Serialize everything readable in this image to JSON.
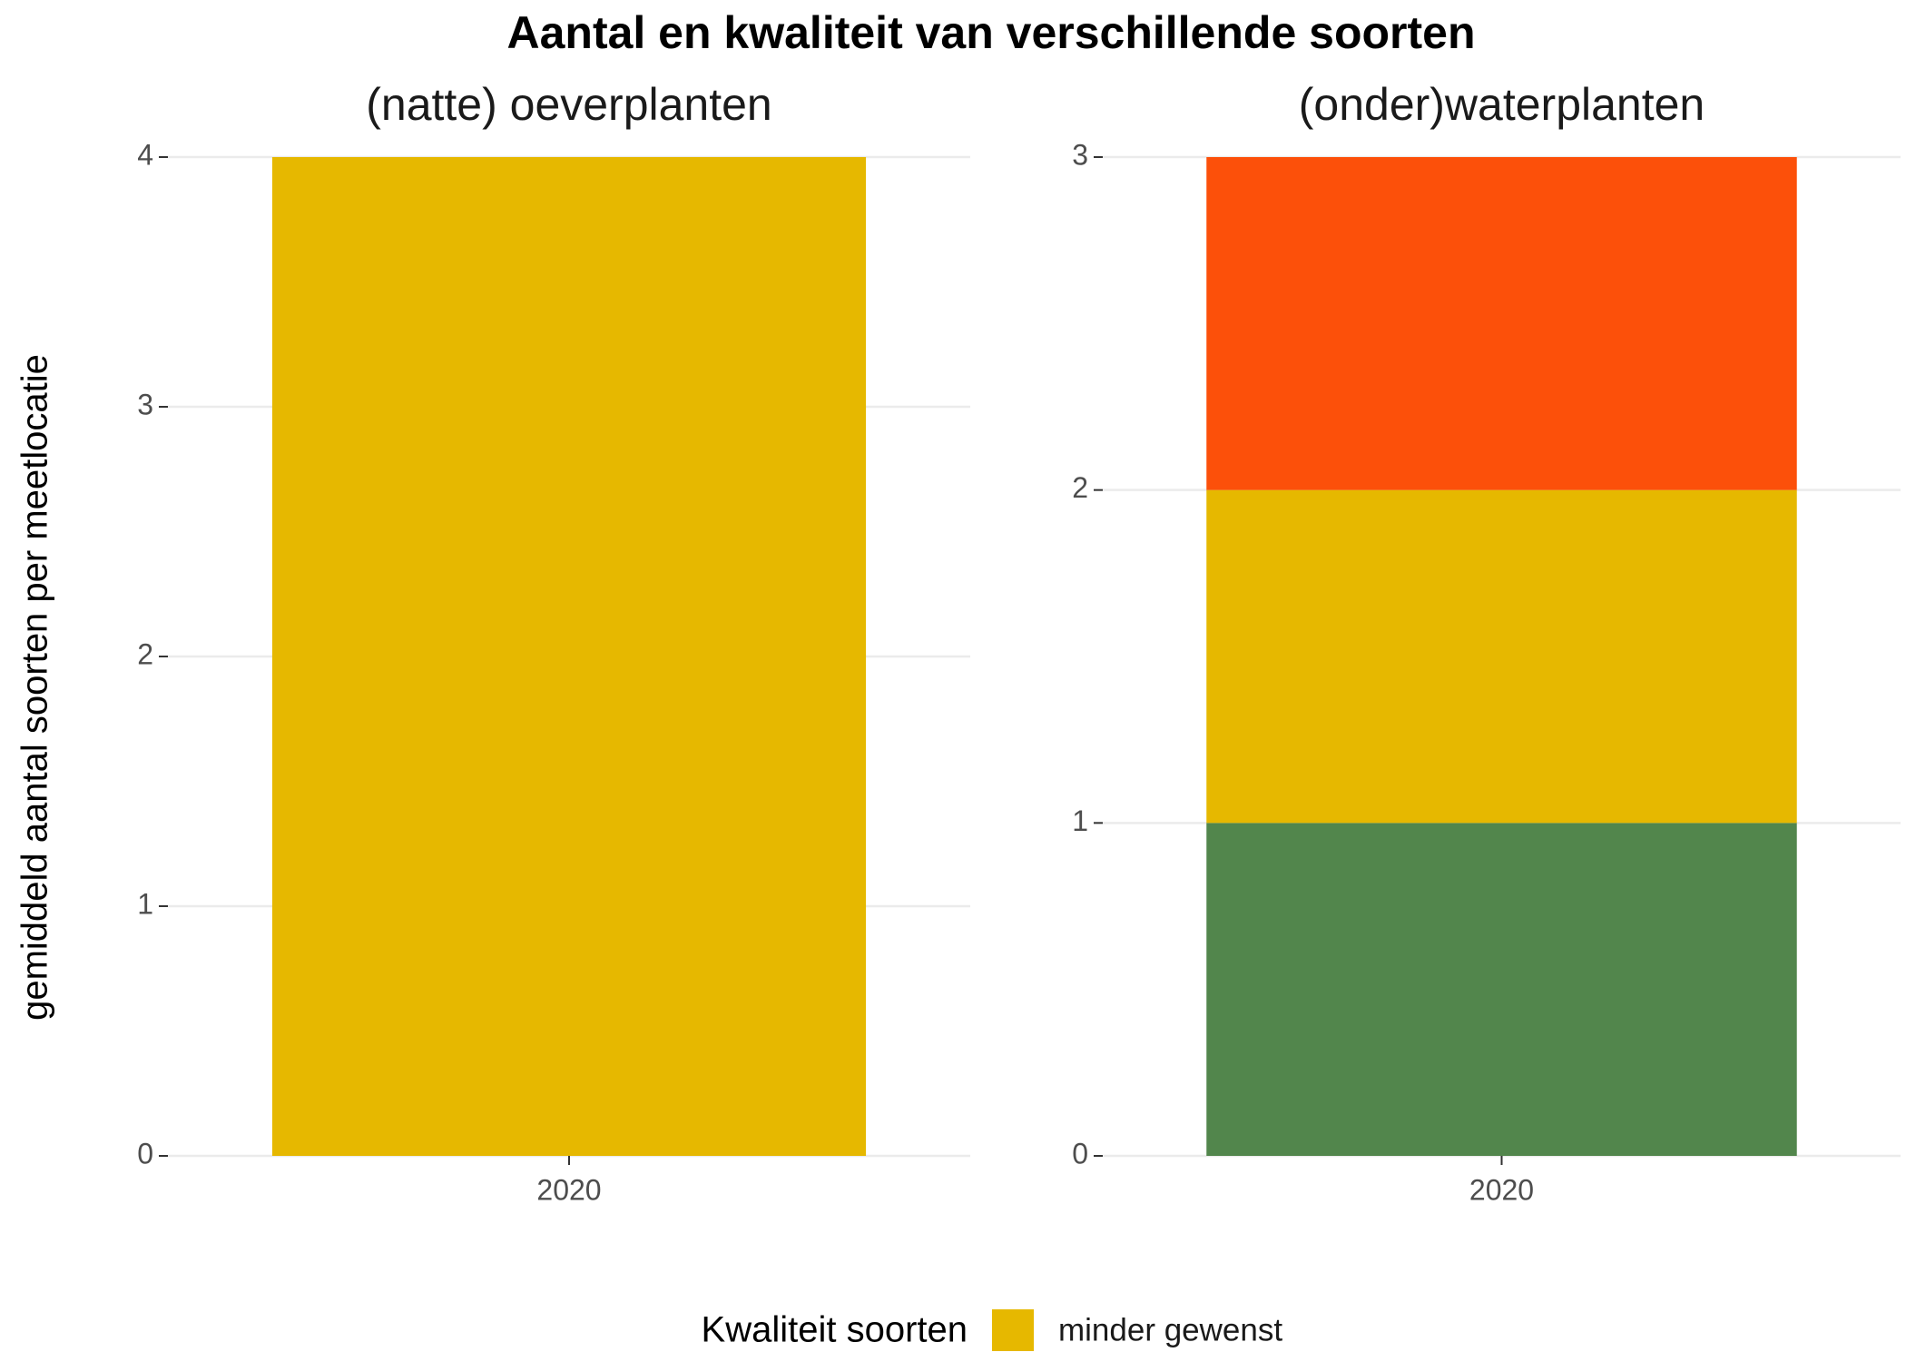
{
  "title": "Aantal en kwaliteit van verschillende soorten",
  "ylabel": "gemiddeld aantal soorten per meetlocatie",
  "legend_title": "Kwaliteit soorten",
  "chart_data": [
    {
      "type": "bar",
      "stacked": true,
      "subtitle": "(natte) oeverplanten",
      "categories": [
        "2020"
      ],
      "series": [
        {
          "name": "minder gewenst",
          "color": "#e6b800",
          "values": [
            4
          ]
        }
      ],
      "ylim": [
        0,
        4
      ],
      "yticks": [
        0,
        1,
        2,
        3,
        4
      ],
      "grid": true
    },
    {
      "type": "bar",
      "stacked": true,
      "subtitle": "(onder)waterplanten",
      "categories": [
        "2020"
      ],
      "series": [
        {
          "color": "#52864c",
          "values": [
            1
          ]
        },
        {
          "color": "#e6b800",
          "values": [
            1
          ]
        },
        {
          "color": "#fc500a",
          "values": [
            1
          ]
        }
      ],
      "ylim": [
        0,
        3
      ],
      "yticks": [
        0,
        1,
        2,
        3
      ],
      "grid": true
    }
  ]
}
